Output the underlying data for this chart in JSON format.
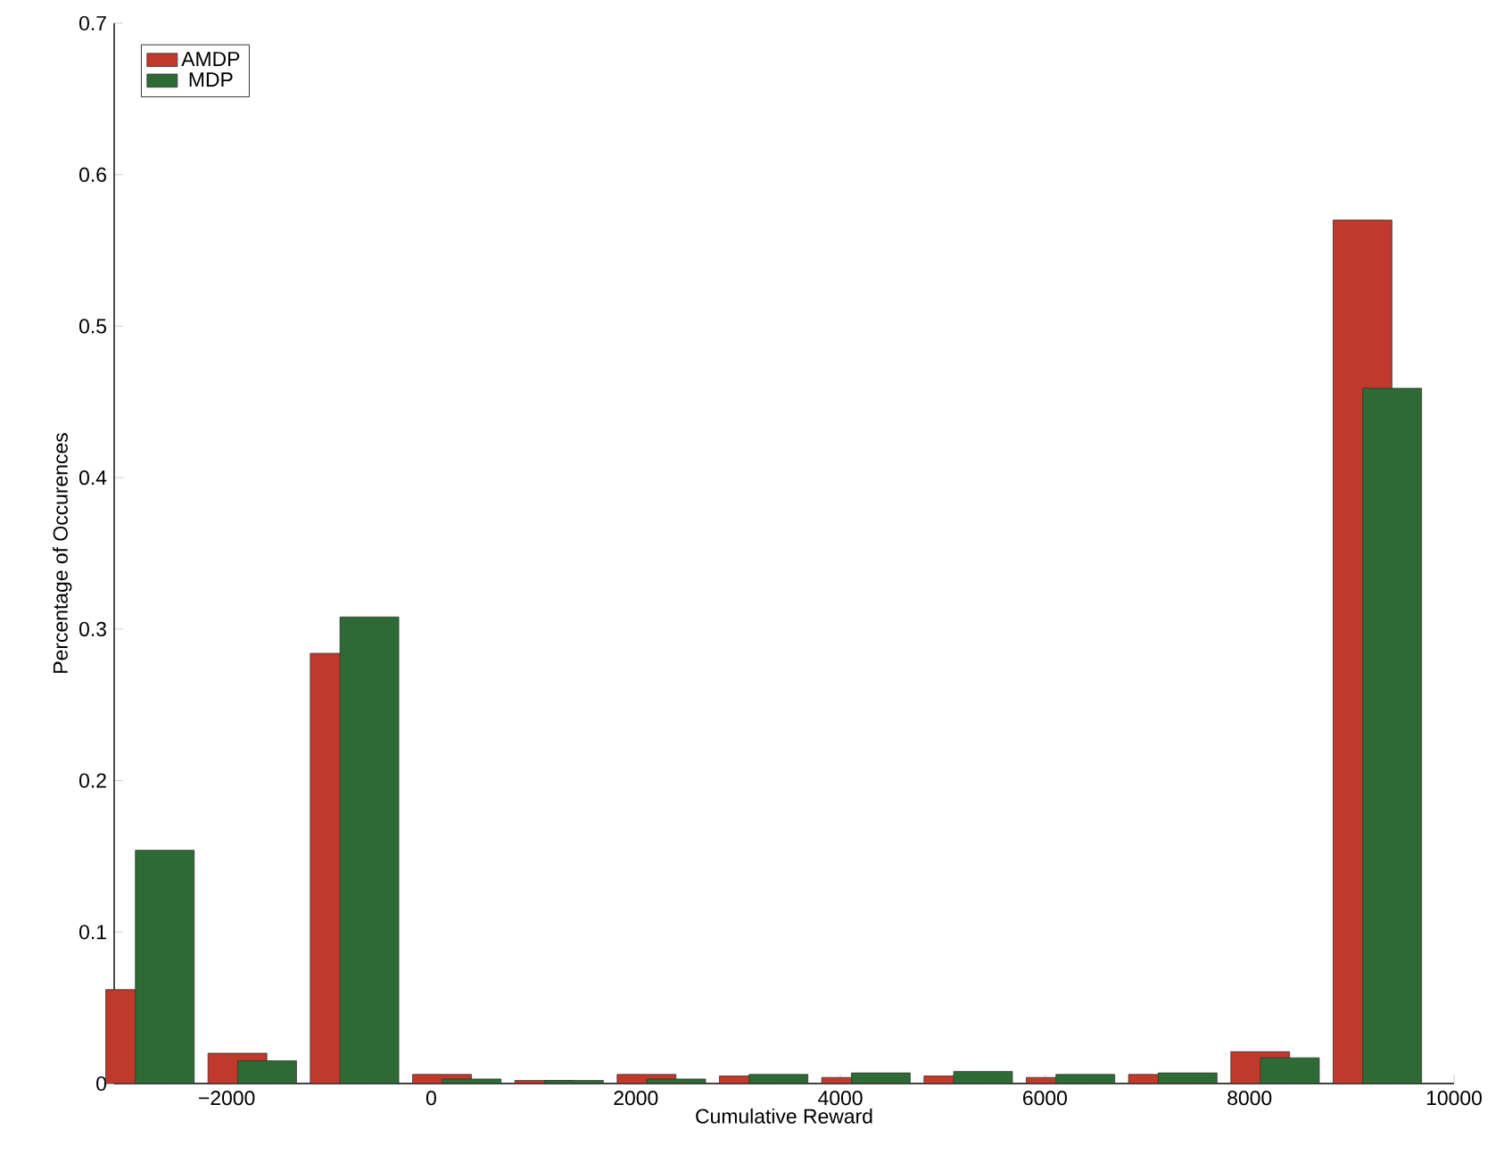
{
  "chart_data": {
    "type": "bar",
    "xlabel": "Cumulative Reward",
    "ylabel": "Percentage of Occurences",
    "x": [
      -2750,
      -1750,
      -750,
      250,
      1250,
      2250,
      3250,
      4250,
      5250,
      6250,
      7250,
      8250,
      9250
    ],
    "series": [
      {
        "name": "AMDP",
        "color": "#c0392b",
        "values": [
          0.062,
          0.02,
          0.284,
          0.006,
          0.002,
          0.006,
          0.005,
          0.004,
          0.005,
          0.004,
          0.006,
          0.021,
          0.57
        ]
      },
      {
        "name": "MDP",
        "color": "#2e6b34",
        "values": [
          0.154,
          0.015,
          0.308,
          0.003,
          0.002,
          0.003,
          0.006,
          0.007,
          0.008,
          0.006,
          0.007,
          0.017,
          0.459
        ]
      }
    ],
    "xlim": [
      -3100,
      10000
    ],
    "ylim": [
      0,
      0.7
    ],
    "xticks": [
      {
        "value": -2000,
        "label": "−2000"
      },
      0,
      2000,
      4000,
      6000,
      8000,
      10000
    ],
    "yticks": [
      0,
      0.1,
      0.2,
      0.3,
      0.4,
      0.5,
      0.6,
      0.7
    ],
    "grid": false,
    "legend": "top left"
  }
}
